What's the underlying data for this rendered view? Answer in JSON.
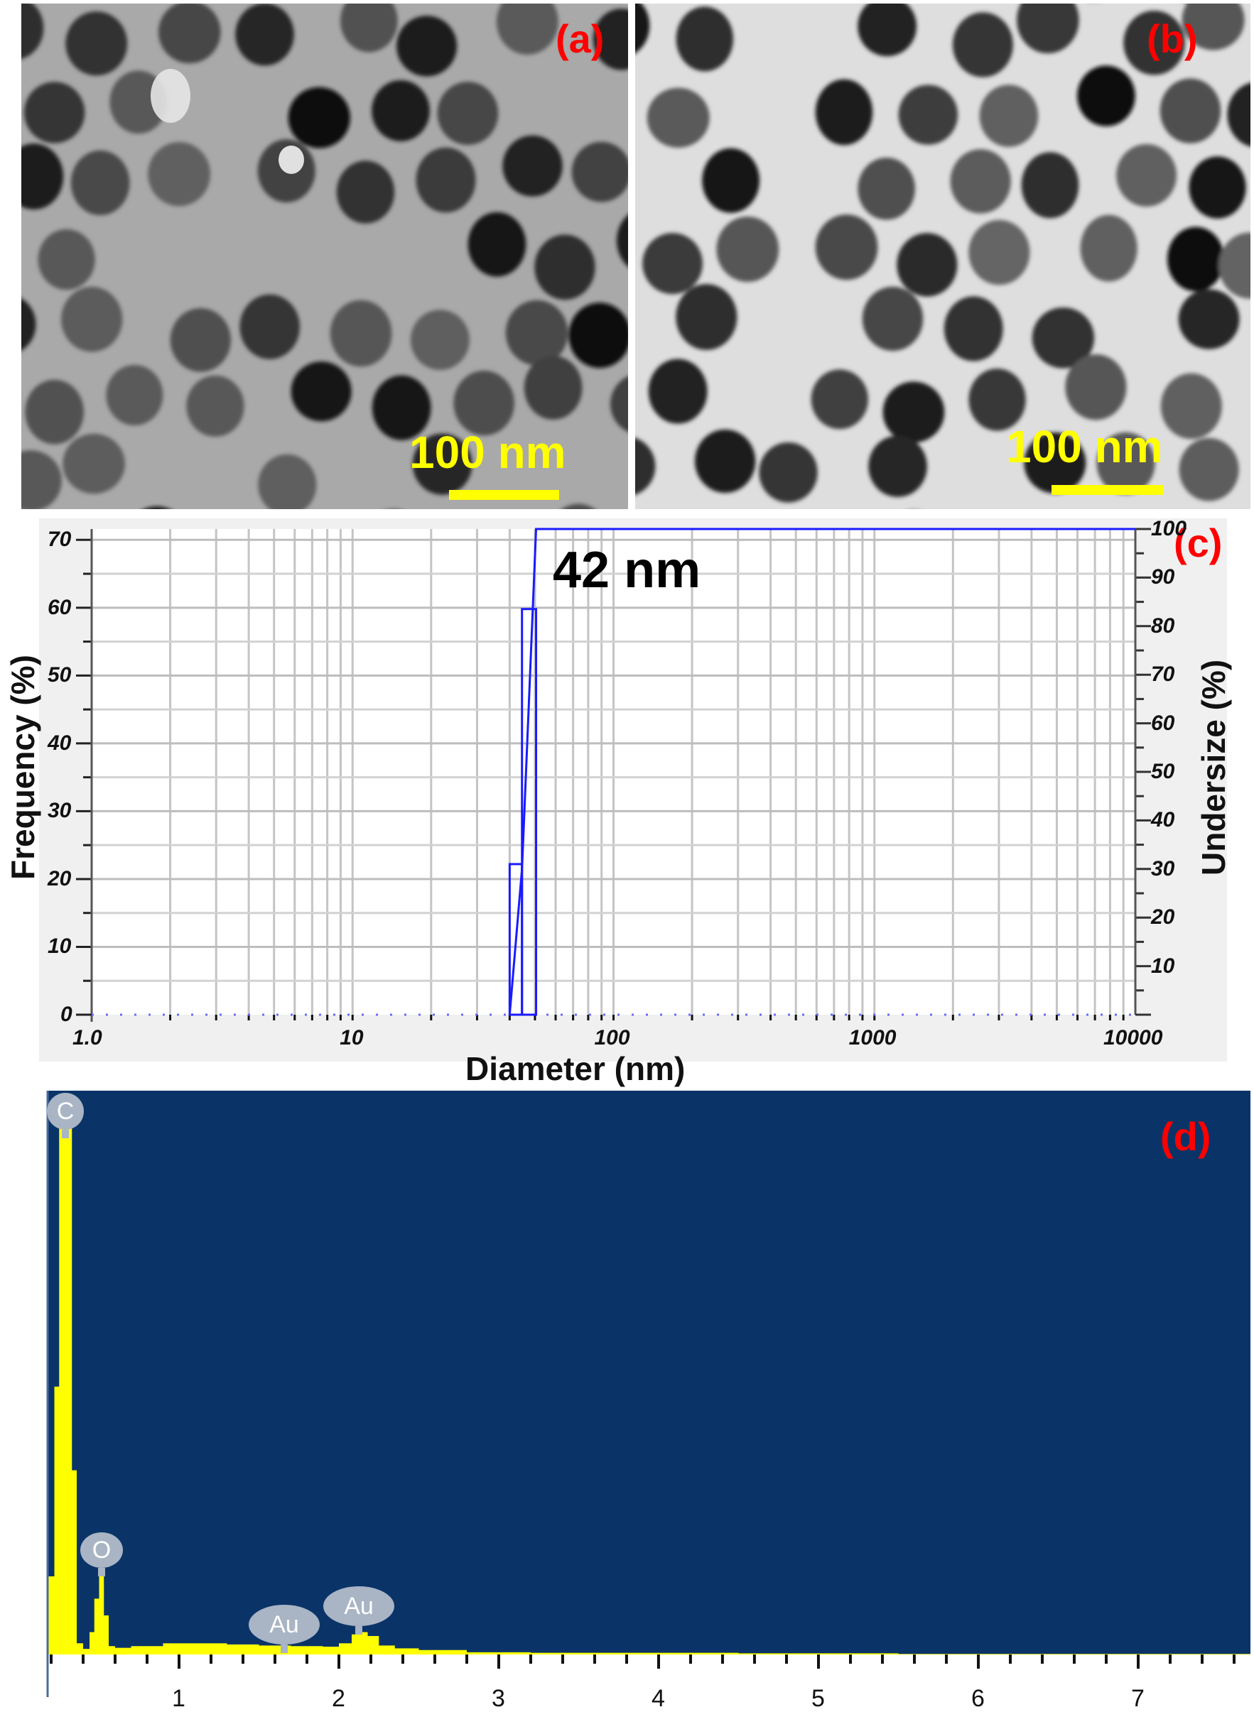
{
  "panels": {
    "a": {
      "label": "(a)",
      "scale_bar": "100 nm",
      "type": "TEM micrograph",
      "background": "#a8a8a8"
    },
    "b": {
      "label": "(b)",
      "scale_bar": "100 nm",
      "type": "TEM micrograph",
      "background": "#dcdcdc"
    },
    "c": {
      "label": "(c)",
      "annotation": "42 nm"
    },
    "d": {
      "label": "(d)"
    }
  },
  "colors": {
    "panel_label": "#ff0000",
    "scale_bar": "#ffff00",
    "dls_line": "#1a1aff",
    "eds_background": "#0a3468",
    "eds_spectrum": "#ffff00",
    "eds_peak_label": "#a9b4c4"
  },
  "chart_data": [
    {
      "panel": "c",
      "type": "bar",
      "title": "",
      "annotation": "42 nm",
      "xlabel": "Diameter (nm)",
      "ylabel": "Frequency (%)",
      "y2label": "Undersize (%)",
      "xscale": "log",
      "xlim": [
        1.0,
        10000
      ],
      "ylim": [
        0,
        71.6
      ],
      "y2lim": [
        0,
        100
      ],
      "xticks": [
        "1.0",
        "10",
        "100",
        "1000",
        "10000"
      ],
      "yticks": [
        "0",
        "10",
        "20",
        "30",
        "40",
        "50",
        "60",
        "70"
      ],
      "y2ticks": [
        "10",
        "20",
        "30",
        "40",
        "50",
        "60",
        "70",
        "80",
        "90",
        "100"
      ],
      "grid": true,
      "series": [
        {
          "name": "Frequency (%)",
          "kind": "histogram",
          "bins": [
            {
              "x0": 40,
              "x1": 44.6,
              "value": 22.2
            },
            {
              "x0": 44.6,
              "x1": 50.5,
              "value": 59.8
            }
          ]
        },
        {
          "name": "Undersize (%)",
          "kind": "cumulative-line",
          "x": [
            40,
            44.6,
            50.5,
            10000
          ],
          "values": [
            0,
            30,
            100,
            100
          ]
        }
      ]
    },
    {
      "panel": "d",
      "type": "area",
      "title": "",
      "xlabel": "",
      "ylabel": "",
      "xlim": [
        0.18,
        7.7
      ],
      "xticks": [
        "1",
        "2",
        "3",
        "4",
        "5",
        "6",
        "7"
      ],
      "grid": false,
      "peaks": [
        {
          "label": "C",
          "energy_keV": 0.28,
          "relative_height": 100
        },
        {
          "label": "O",
          "energy_keV": 0.52,
          "relative_height": 14
        },
        {
          "label": "Au",
          "energy_keV": 1.66,
          "relative_height": 1
        },
        {
          "label": "Au",
          "energy_keV": 2.12,
          "relative_height": 4
        }
      ],
      "series": [
        {
          "name": "EDS spectrum",
          "x": [
            0.18,
            0.2,
            0.22,
            0.25,
            0.27,
            0.29,
            0.31,
            0.33,
            0.36,
            0.4,
            0.44,
            0.47,
            0.5,
            0.53,
            0.56,
            0.6,
            0.7,
            0.9,
            1.1,
            1.3,
            1.5,
            1.7,
            1.9,
            2.0,
            2.08,
            2.12,
            2.18,
            2.25,
            2.35,
            2.5,
            2.8,
            3.2,
            3.8,
            4.5,
            5.5,
            6.5,
            7.7
          ],
          "values": [
            14,
            14,
            48,
            100,
            100,
            100,
            100,
            33,
            2,
            1,
            4,
            10,
            14,
            7,
            1.5,
            1.2,
            1.5,
            2,
            2,
            1.8,
            1.6,
            1.5,
            1.4,
            2,
            3.6,
            4.0,
            3.3,
            1.6,
            1.1,
            0.8,
            0.4,
            0.3,
            0.3,
            0.2,
            0.1,
            0.1,
            0.1
          ]
        }
      ]
    }
  ]
}
